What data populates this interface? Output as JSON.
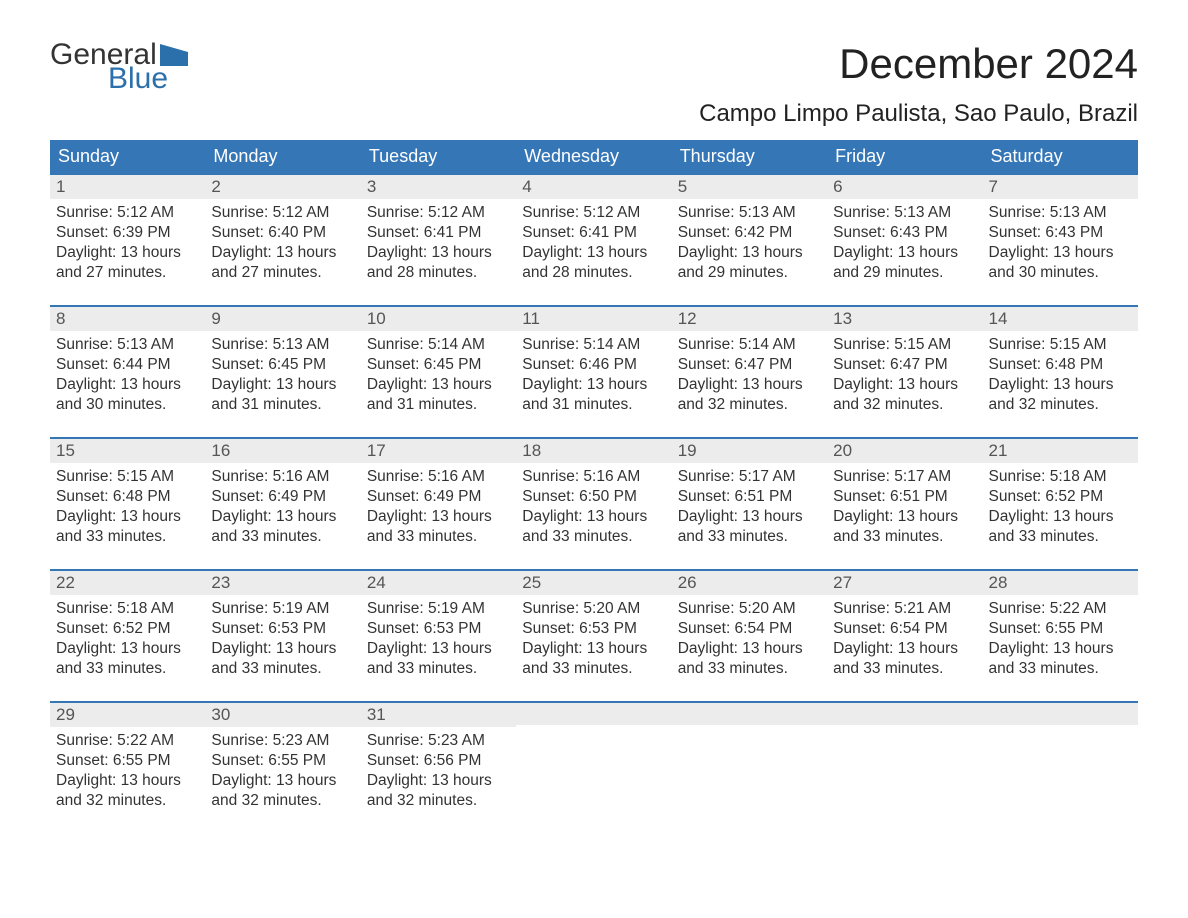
{
  "logo": {
    "text_general": "General",
    "text_blue": "Blue",
    "flag_color": "#2b6fab"
  },
  "header": {
    "month_title": "December 2024",
    "location": "Campo Limpo Paulista, Sao Paulo, Brazil",
    "title_fontsize": 42,
    "location_fontsize": 24,
    "title_color": "#222222"
  },
  "calendar": {
    "type": "table",
    "header_bg": "#3576b7",
    "header_text_color": "#ffffff",
    "daynum_bg": "#ececec",
    "daynum_border_top": "#3576b7",
    "body_text_color": "#333333",
    "background_color": "#ffffff",
    "columns": [
      "Sunday",
      "Monday",
      "Tuesday",
      "Wednesday",
      "Thursday",
      "Friday",
      "Saturday"
    ],
    "weeks": [
      [
        {
          "n": "1",
          "sunrise": "5:12 AM",
          "sunset": "6:39 PM",
          "dl1": "Daylight: 13 hours",
          "dl2": "and 27 minutes."
        },
        {
          "n": "2",
          "sunrise": "5:12 AM",
          "sunset": "6:40 PM",
          "dl1": "Daylight: 13 hours",
          "dl2": "and 27 minutes."
        },
        {
          "n": "3",
          "sunrise": "5:12 AM",
          "sunset": "6:41 PM",
          "dl1": "Daylight: 13 hours",
          "dl2": "and 28 minutes."
        },
        {
          "n": "4",
          "sunrise": "5:12 AM",
          "sunset": "6:41 PM",
          "dl1": "Daylight: 13 hours",
          "dl2": "and 28 minutes."
        },
        {
          "n": "5",
          "sunrise": "5:13 AM",
          "sunset": "6:42 PM",
          "dl1": "Daylight: 13 hours",
          "dl2": "and 29 minutes."
        },
        {
          "n": "6",
          "sunrise": "5:13 AM",
          "sunset": "6:43 PM",
          "dl1": "Daylight: 13 hours",
          "dl2": "and 29 minutes."
        },
        {
          "n": "7",
          "sunrise": "5:13 AM",
          "sunset": "6:43 PM",
          "dl1": "Daylight: 13 hours",
          "dl2": "and 30 minutes."
        }
      ],
      [
        {
          "n": "8",
          "sunrise": "5:13 AM",
          "sunset": "6:44 PM",
          "dl1": "Daylight: 13 hours",
          "dl2": "and 30 minutes."
        },
        {
          "n": "9",
          "sunrise": "5:13 AM",
          "sunset": "6:45 PM",
          "dl1": "Daylight: 13 hours",
          "dl2": "and 31 minutes."
        },
        {
          "n": "10",
          "sunrise": "5:14 AM",
          "sunset": "6:45 PM",
          "dl1": "Daylight: 13 hours",
          "dl2": "and 31 minutes."
        },
        {
          "n": "11",
          "sunrise": "5:14 AM",
          "sunset": "6:46 PM",
          "dl1": "Daylight: 13 hours",
          "dl2": "and 31 minutes."
        },
        {
          "n": "12",
          "sunrise": "5:14 AM",
          "sunset": "6:47 PM",
          "dl1": "Daylight: 13 hours",
          "dl2": "and 32 minutes."
        },
        {
          "n": "13",
          "sunrise": "5:15 AM",
          "sunset": "6:47 PM",
          "dl1": "Daylight: 13 hours",
          "dl2": "and 32 minutes."
        },
        {
          "n": "14",
          "sunrise": "5:15 AM",
          "sunset": "6:48 PM",
          "dl1": "Daylight: 13 hours",
          "dl2": "and 32 minutes."
        }
      ],
      [
        {
          "n": "15",
          "sunrise": "5:15 AM",
          "sunset": "6:48 PM",
          "dl1": "Daylight: 13 hours",
          "dl2": "and 33 minutes."
        },
        {
          "n": "16",
          "sunrise": "5:16 AM",
          "sunset": "6:49 PM",
          "dl1": "Daylight: 13 hours",
          "dl2": "and 33 minutes."
        },
        {
          "n": "17",
          "sunrise": "5:16 AM",
          "sunset": "6:49 PM",
          "dl1": "Daylight: 13 hours",
          "dl2": "and 33 minutes."
        },
        {
          "n": "18",
          "sunrise": "5:16 AM",
          "sunset": "6:50 PM",
          "dl1": "Daylight: 13 hours",
          "dl2": "and 33 minutes."
        },
        {
          "n": "19",
          "sunrise": "5:17 AM",
          "sunset": "6:51 PM",
          "dl1": "Daylight: 13 hours",
          "dl2": "and 33 minutes."
        },
        {
          "n": "20",
          "sunrise": "5:17 AM",
          "sunset": "6:51 PM",
          "dl1": "Daylight: 13 hours",
          "dl2": "and 33 minutes."
        },
        {
          "n": "21",
          "sunrise": "5:18 AM",
          "sunset": "6:52 PM",
          "dl1": "Daylight: 13 hours",
          "dl2": "and 33 minutes."
        }
      ],
      [
        {
          "n": "22",
          "sunrise": "5:18 AM",
          "sunset": "6:52 PM",
          "dl1": "Daylight: 13 hours",
          "dl2": "and 33 minutes."
        },
        {
          "n": "23",
          "sunrise": "5:19 AM",
          "sunset": "6:53 PM",
          "dl1": "Daylight: 13 hours",
          "dl2": "and 33 minutes."
        },
        {
          "n": "24",
          "sunrise": "5:19 AM",
          "sunset": "6:53 PM",
          "dl1": "Daylight: 13 hours",
          "dl2": "and 33 minutes."
        },
        {
          "n": "25",
          "sunrise": "5:20 AM",
          "sunset": "6:53 PM",
          "dl1": "Daylight: 13 hours",
          "dl2": "and 33 minutes."
        },
        {
          "n": "26",
          "sunrise": "5:20 AM",
          "sunset": "6:54 PM",
          "dl1": "Daylight: 13 hours",
          "dl2": "and 33 minutes."
        },
        {
          "n": "27",
          "sunrise": "5:21 AM",
          "sunset": "6:54 PM",
          "dl1": "Daylight: 13 hours",
          "dl2": "and 33 minutes."
        },
        {
          "n": "28",
          "sunrise": "5:22 AM",
          "sunset": "6:55 PM",
          "dl1": "Daylight: 13 hours",
          "dl2": "and 33 minutes."
        }
      ],
      [
        {
          "n": "29",
          "sunrise": "5:22 AM",
          "sunset": "6:55 PM",
          "dl1": "Daylight: 13 hours",
          "dl2": "and 32 minutes."
        },
        {
          "n": "30",
          "sunrise": "5:23 AM",
          "sunset": "6:55 PM",
          "dl1": "Daylight: 13 hours",
          "dl2": "and 32 minutes."
        },
        {
          "n": "31",
          "sunrise": "5:23 AM",
          "sunset": "6:56 PM",
          "dl1": "Daylight: 13 hours",
          "dl2": "and 32 minutes."
        },
        null,
        null,
        null,
        null
      ]
    ],
    "labels": {
      "sunrise_prefix": "Sunrise: ",
      "sunset_prefix": "Sunset: "
    }
  }
}
